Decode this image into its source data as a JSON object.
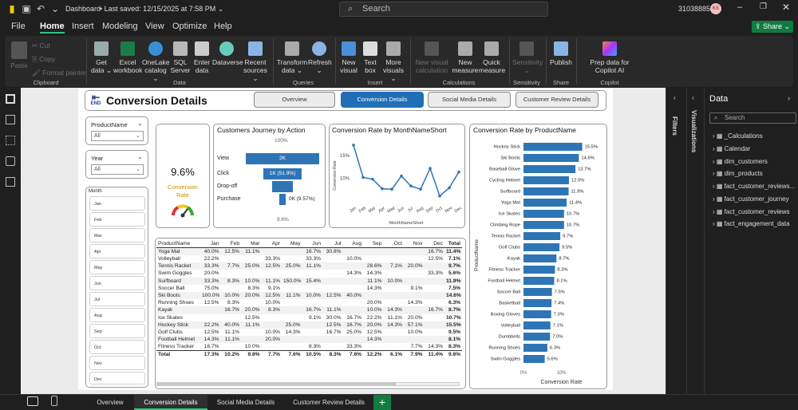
{
  "window": {
    "title": "Dashboard",
    "saved": "Last saved: 12/15/2025 at 7:58 PM",
    "search": "Search",
    "user_id": "31038885",
    "avatar": "KS"
  },
  "menu": [
    "File",
    "Home",
    "Insert",
    "Modeling",
    "View",
    "Optimize",
    "Help"
  ],
  "share_label": "Share",
  "ribbon": {
    "clipboard": {
      "paste": "Paste",
      "cut": "Cut",
      "copy": "Copy",
      "format_painter": "Format painter",
      "group": "Clipboard"
    },
    "data": {
      "get_data": "Get data",
      "excel": "Excel workbook",
      "onelake": "OneLake catalog",
      "sql": "SQL Server",
      "enter": "Enter data",
      "dataverse": "Dataverse",
      "recent": "Recent sources",
      "group": "Data"
    },
    "queries": {
      "transform": "Transform data",
      "refresh": "Refresh",
      "group": "Queries"
    },
    "insert": {
      "new_visual": "New visual",
      "text_box": "Text box",
      "more_visuals": "More visuals",
      "group": "Insert"
    },
    "calcs": {
      "new_visual_calc": "New visual calculation",
      "new_measure": "New measure",
      "quick_measure": "Quick measure",
      "group": "Calculations"
    },
    "sensitivity": {
      "label": "Sensitivity",
      "group": "Sensitivity"
    },
    "share": {
      "publish": "Publish",
      "group": "Share"
    },
    "copilot": {
      "prep": "Prep data for Copilot AI",
      "group": "Copilot"
    }
  },
  "report": {
    "end_label": "END",
    "title": "Conversion Details",
    "nav": [
      "Overview",
      "Conversion Details",
      "Social Media Details",
      "Customer Review Details"
    ],
    "slicers": {
      "product_label": "ProductName",
      "product_value": "All",
      "year_label": "Year",
      "year_value": "All",
      "month_label": "Month",
      "months": [
        "Jan",
        "Feb",
        "Mar",
        "Apr",
        "May",
        "Jun",
        "Jul",
        "Aug",
        "Sep",
        "Oct",
        "Nov",
        "Dec"
      ]
    },
    "kpi": {
      "value": "9.6%",
      "label": "Conversion Rate"
    },
    "funnel": {
      "title": "Customers Journey by Action",
      "top": "100%",
      "bottom": "9.6%",
      "steps": [
        {
          "label": "View",
          "text": "2K",
          "frac": 1.0
        },
        {
          "label": "Click",
          "text": "1K (51.9%)",
          "frac": 0.519
        },
        {
          "label": "Drop-off",
          "text": "",
          "frac": 0.28
        },
        {
          "label": "Purchase",
          "text": "0K (9.57%)",
          "frac": 0.0957
        }
      ]
    },
    "table": {
      "headers": [
        "ProductName",
        "Jan",
        "Feb",
        "Mar",
        "Apr",
        "May",
        "Jun",
        "Jul",
        "Aug",
        "Sep",
        "Oct",
        "Nov",
        "Dec",
        "Total"
      ],
      "rows": [
        [
          "Yoga Mat",
          "40.0%",
          "12.5%",
          "11.1%",
          "",
          "",
          "16.7%",
          "30.8%",
          "",
          "",
          "",
          "",
          "16.7%",
          "11.4%"
        ],
        [
          "Volleyball",
          "22.2%",
          "",
          "",
          "33.3%",
          "",
          "33.3%",
          "",
          "10.0%",
          "",
          "",
          "",
          "12.5%",
          "7.1%"
        ],
        [
          "Tennis Racket",
          "33.3%",
          "7.7%",
          "25.0%",
          "12.5%",
          "25.0%",
          "11.1%",
          "",
          "",
          "28.6%",
          "7.1%",
          "20.0%",
          "",
          "9.7%"
        ],
        [
          "Swim Goggles",
          "20.0%",
          "",
          "",
          "",
          "",
          "",
          "",
          "14.3%",
          "14.3%",
          "",
          "",
          "33.3%",
          "5.6%"
        ],
        [
          "Surfboard",
          "33.3%",
          "8.3%",
          "10.0%",
          "11.1%",
          "150.0%",
          "15.4%",
          "",
          "",
          "11.1%",
          "10.0%",
          "",
          "",
          "11.9%"
        ],
        [
          "Soccer Ball",
          "75.0%",
          "",
          "8.3%",
          "9.1%",
          "",
          "",
          "",
          "",
          "14.3%",
          "",
          "9.1%",
          "",
          "7.5%"
        ],
        [
          "Ski Boots",
          "100.0%",
          "10.0%",
          "20.0%",
          "12.5%",
          "11.1%",
          "10.0%",
          "12.5%",
          "40.0%",
          "",
          "",
          "",
          "",
          "14.6%"
        ],
        [
          "Running Shoes",
          "12.5%",
          "8.3%",
          "",
          "10.0%",
          "",
          "",
          "",
          "",
          "20.0%",
          "",
          "14.3%",
          "",
          "6.3%"
        ],
        [
          "Kayak",
          "",
          "16.7%",
          "20.0%",
          "8.3%",
          "",
          "16.7%",
          "11.1%",
          "",
          "10.0%",
          "14.3%",
          "",
          "16.7%",
          "8.7%"
        ],
        [
          "Ice Skates",
          "",
          "",
          "12.5%",
          "",
          "",
          "9.1%",
          "30.0%",
          "16.7%",
          "22.2%",
          "11.1%",
          "20.0%",
          "",
          "10.7%"
        ],
        [
          "Hockey Stick",
          "22.2%",
          "40.0%",
          "11.1%",
          "",
          "25.0%",
          "",
          "12.5%",
          "16.7%",
          "20.0%",
          "14.3%",
          "57.1%",
          "",
          "15.5%"
        ],
        [
          "Golf Clubs",
          "12.5%",
          "11.1%",
          "",
          "10.0%",
          "14.3%",
          "",
          "16.7%",
          "25.0%",
          "12.5%",
          "",
          "10.0%",
          "",
          "9.5%"
        ],
        [
          "Football Helmet",
          "14.3%",
          "11.1%",
          "",
          "20.0%",
          "",
          "",
          "",
          "",
          "14.3%",
          "",
          "",
          "",
          "8.1%"
        ],
        [
          "Fitness Tracker",
          "16.7%",
          "",
          "10.0%",
          "",
          "",
          "8.3%",
          "",
          "33.3%",
          "",
          "",
          "7.7%",
          "14.3%",
          "8.3%"
        ]
      ],
      "total": [
        "Total",
        "17.3%",
        "10.2%",
        "9.8%",
        "7.7%",
        "7.6%",
        "10.5%",
        "8.3%",
        "7.6%",
        "12.2%",
        "6.1%",
        "7.9%",
        "11.4%",
        "9.6%"
      ]
    }
  },
  "chart_data": [
    {
      "type": "line",
      "title": "Conversion Rate by MonthNameShort",
      "xlabel": "MonthNameShort",
      "ylabel": "Conversion Rate",
      "categories": [
        "Jan",
        "Feb",
        "Mar",
        "Apr",
        "May",
        "Jun",
        "Jul",
        "Aug",
        "Sep",
        "Oct",
        "Nov",
        "Dec"
      ],
      "values": [
        17.3,
        10.2,
        9.8,
        7.7,
        7.6,
        10.5,
        8.3,
        7.6,
        12.2,
        6.1,
        7.9,
        11.4
      ],
      "yticks": [
        "10%",
        "15%"
      ],
      "ylim": [
        5,
        18
      ]
    },
    {
      "type": "bar",
      "title": "Conversion Rate by ProductName",
      "xlabel": "Conversion Rate",
      "ylabel": "ProductName",
      "categories": [
        "Hockey Stick",
        "Ski Boots",
        "Baseball Glove",
        "Cycling Helmet",
        "Surfboard",
        "Yoga Mat",
        "Ice Skates",
        "Climbing Rope",
        "Tennis Racket",
        "Golf Clubs",
        "Kayak",
        "Fitness Tracker",
        "Football Helmet",
        "Soccer Ball",
        "Basketball",
        "Boxing Gloves",
        "Volleyball",
        "Dumbbells",
        "Running Shoes",
        "Swim Goggles"
      ],
      "values": [
        15.5,
        14.6,
        13.7,
        12.0,
        11.9,
        11.4,
        10.7,
        10.7,
        9.7,
        9.5,
        8.7,
        8.3,
        8.1,
        7.5,
        7.4,
        7.3,
        7.1,
        7.0,
        6.3,
        5.6
      ],
      "labels": [
        "15.5%",
        "14.6%",
        "13.7%",
        "12.0%",
        "11.9%",
        "11.4%",
        "10.7%",
        "10.7%",
        "9.7%",
        "9.5%",
        "8.7%",
        "8.3%",
        "8.1%",
        "7.5%",
        "7.4%",
        "7.3%",
        "7.1%",
        "7.0%",
        "6.3%",
        "5.6%"
      ],
      "xticks": [
        "0%",
        "10%"
      ],
      "xlim": [
        0,
        20
      ]
    }
  ],
  "side": {
    "filters": "Filters",
    "visualizations": "Visualizations",
    "data_title": "Data",
    "data_search": "Search",
    "tables": [
      "_Calculations",
      "Calendar",
      "dim_customers",
      "dim_products",
      "fact_customer_reviews...",
      "fact_customer_journey",
      "fact_customer_reviews",
      "fact_engagement_data"
    ]
  },
  "pages": [
    "Overview",
    "Conversion Details",
    "Social Media Details",
    "Customer Review Details"
  ],
  "colors": {
    "accent": "#1f6fb6",
    "bar": "#2e75b6",
    "green": "#107c41"
  }
}
